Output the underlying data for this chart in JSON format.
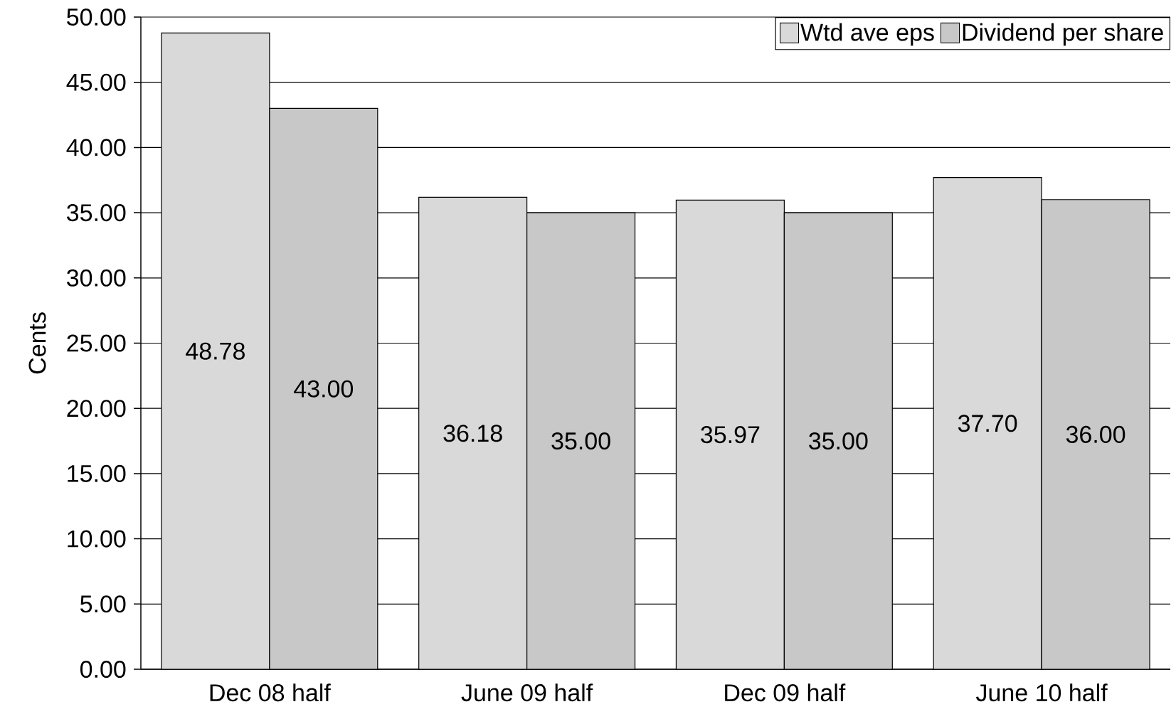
{
  "chart_data": {
    "type": "bar",
    "ylabel": "Cents",
    "categories": [
      "Dec 08 half",
      "June 09 half",
      "Dec 09 half",
      "June 10 half"
    ],
    "series": [
      {
        "name": "Wtd ave eps",
        "color": "#d9d9d9",
        "values": [
          48.78,
          36.18,
          35.97,
          37.7
        ],
        "value_labels": [
          "48.78",
          "36.18",
          "35.97",
          "37.70"
        ]
      },
      {
        "name": "Dividend per share",
        "color": "#c8c8c8",
        "values": [
          43.0,
          35.0,
          35.0,
          36.0
        ],
        "value_labels": [
          "43.00",
          "35.00",
          "35.00",
          "36.00"
        ]
      }
    ],
    "ylim": [
      0,
      50
    ],
    "yticks": [
      {
        "value": 0,
        "label": "0.00"
      },
      {
        "value": 5,
        "label": "5.00"
      },
      {
        "value": 10,
        "label": "10.00"
      },
      {
        "value": 15,
        "label": "15.00"
      },
      {
        "value": 20,
        "label": "20.00"
      },
      {
        "value": 25,
        "label": "25.00"
      },
      {
        "value": 30,
        "label": "30.00"
      },
      {
        "value": 35,
        "label": "35.00"
      },
      {
        "value": 40,
        "label": "40.00"
      },
      {
        "value": 45,
        "label": "45.00"
      },
      {
        "value": 50,
        "label": "50.00"
      }
    ],
    "grid": "y",
    "legend": "top right"
  }
}
